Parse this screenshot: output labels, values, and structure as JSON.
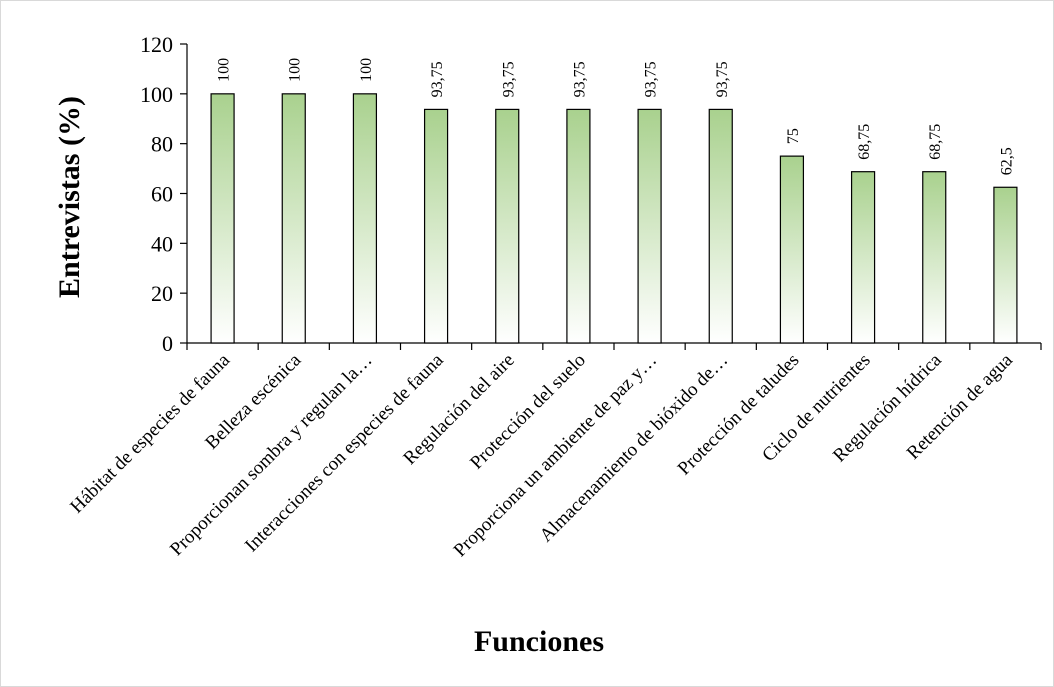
{
  "chart_data": {
    "type": "bar",
    "xlabel": "Funciones",
    "ylabel": "Entrevistas (%)",
    "ylim": [
      0,
      120
    ],
    "yticks": [
      0,
      20,
      40,
      60,
      80,
      100,
      120
    ],
    "grid": false,
    "legend": "none",
    "categories": [
      "Hábitat de especies de fauna",
      "Belleza escénica",
      "Proporcionan sombra y regulan la…",
      "Interacciones con especies de fauna",
      "Regulación del aire",
      "Protección del suelo",
      "Proporciona un ambiente de paz y…",
      "Almacenamiento de bióxido de…",
      "Protección de taludes",
      "Ciclo de nutrientes",
      "Regulación hídrica",
      "Retención de agua"
    ],
    "values": [
      100,
      100,
      100,
      93.75,
      93.75,
      93.75,
      93.75,
      93.75,
      75,
      68.75,
      68.75,
      62.5
    ],
    "data_labels": [
      "100",
      "100",
      "100",
      "93,75",
      "93,75",
      "93,75",
      "93,75",
      "93,75",
      "75",
      "68,75",
      "68,75",
      "62,5"
    ],
    "colors": {
      "bar_fill_top": "#a9d18e",
      "bar_fill_bottom": "#ffffff",
      "bar_stroke": "#000000",
      "axis": "#000000"
    }
  }
}
